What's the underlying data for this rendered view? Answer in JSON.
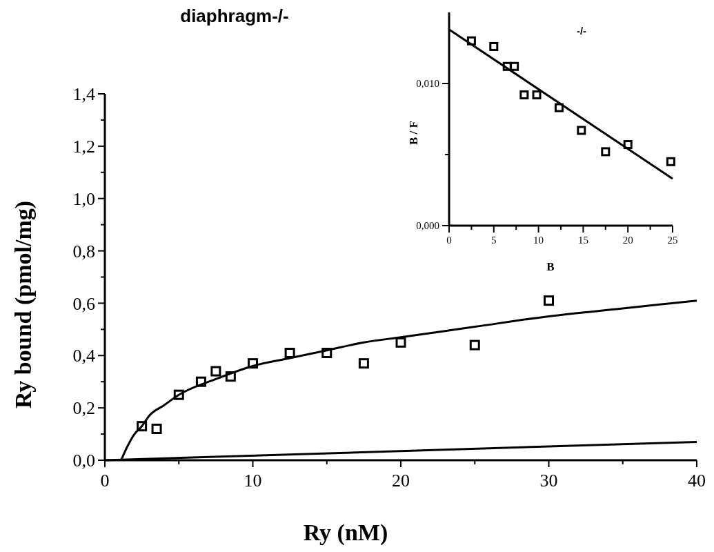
{
  "chart_data": [
    {
      "type": "scatter",
      "title": "diaphragm-/-",
      "xlabel": "Ry (nM)",
      "ylabel": "Ry bound (pmol/mg)",
      "xlim": [
        0,
        40
      ],
      "xticks": [
        0,
        {
          "value": 5,
          "label": null
        },
        10,
        {
          "value": 15,
          "label": null
        },
        20,
        {
          "value": 25,
          "label": null
        },
        30,
        {
          "value": 35,
          "label": null
        },
        40
      ],
      "ylim": [
        0,
        1.4
      ],
      "yticks": [
        {
          "value": 0,
          "label": "0,0"
        },
        {
          "value": 0.1,
          "label": null
        },
        {
          "value": 0.2,
          "label": "0,2"
        },
        {
          "value": 0.3,
          "label": null
        },
        {
          "value": 0.4,
          "label": "0,4"
        },
        {
          "value": 0.5,
          "label": null
        },
        {
          "value": 0.6,
          "label": "0,6"
        },
        {
          "value": 0.7,
          "label": null
        },
        {
          "value": 0.8,
          "label": "0,8"
        },
        {
          "value": 0.9,
          "label": null
        },
        {
          "value": 1.0,
          "label": "1,0"
        },
        {
          "value": 1.1,
          "label": null
        },
        {
          "value": 1.2,
          "label": "1,2"
        },
        {
          "value": 1.3,
          "label": null
        },
        {
          "value": 1.4,
          "label": "1,4"
        }
      ],
      "grid": false,
      "series": [
        {
          "type": "scatter",
          "marker": "square",
          "color": "#000000",
          "x": [
            2.5,
            3.5,
            5,
            6.5,
            7.5,
            8.5,
            10,
            12.5,
            15,
            17.5,
            20,
            25,
            30
          ],
          "values": [
            0.13,
            0.12,
            0.25,
            0.3,
            0.34,
            0.32,
            0.37,
            0.41,
            0.41,
            0.37,
            0.45,
            0.44,
            0.61
          ]
        },
        {
          "type": "line",
          "marker": "none",
          "line_style": "solid",
          "color": "#000000",
          "x": [
            1.1,
            1.5,
            2,
            2.5,
            3,
            4,
            5,
            7.5,
            10,
            12.5,
            15,
            17.5,
            20,
            25,
            30,
            35,
            40
          ],
          "values": [
            0,
            0.05,
            0.1,
            0.13,
            0.17,
            0.21,
            0.25,
            0.31,
            0.36,
            0.39,
            0.42,
            0.45,
            0.47,
            0.51,
            0.55,
            0.58,
            0.61
          ]
        },
        {
          "type": "line",
          "marker": "none",
          "line_style": "solid",
          "color": "#000000",
          "x": [
            0,
            40
          ],
          "values": [
            0,
            0.07
          ]
        }
      ]
    },
    {
      "type": "scatter",
      "title": "-/-",
      "xlabel": "B",
      "ylabel": "B / F",
      "xlim": [
        0,
        25
      ],
      "xticks": [
        0,
        {
          "value": 2.5,
          "label": null
        },
        5,
        {
          "value": 7.5,
          "label": null
        },
        10,
        {
          "value": 12.5,
          "label": null
        },
        15,
        {
          "value": 17.5,
          "label": null
        },
        20,
        {
          "value": 22.5,
          "label": null
        },
        25
      ],
      "ylim": [
        0,
        0.015
      ],
      "yticks": [
        {
          "value": 0,
          "label": "0,000"
        },
        {
          "value": 0.005,
          "label": null
        },
        {
          "value": 0.01,
          "label": "0,010"
        }
      ],
      "grid": false,
      "series": [
        {
          "type": "scatter",
          "marker": "square",
          "color": "#000000",
          "x": [
            2.5,
            5,
            6.5,
            7.3,
            8.4,
            9.8,
            12.3,
            14.8,
            17.5,
            20,
            24.8
          ],
          "values": [
            0.013,
            0.0126,
            0.0112,
            0.0112,
            0.0092,
            0.0092,
            0.0083,
            0.0067,
            0.0052,
            0.0057,
            0.0045
          ]
        },
        {
          "type": "line",
          "marker": "none",
          "line_style": "solid",
          "color": "#000000",
          "x": [
            0,
            25
          ],
          "values": [
            0.0138,
            0.0033
          ]
        }
      ]
    }
  ]
}
